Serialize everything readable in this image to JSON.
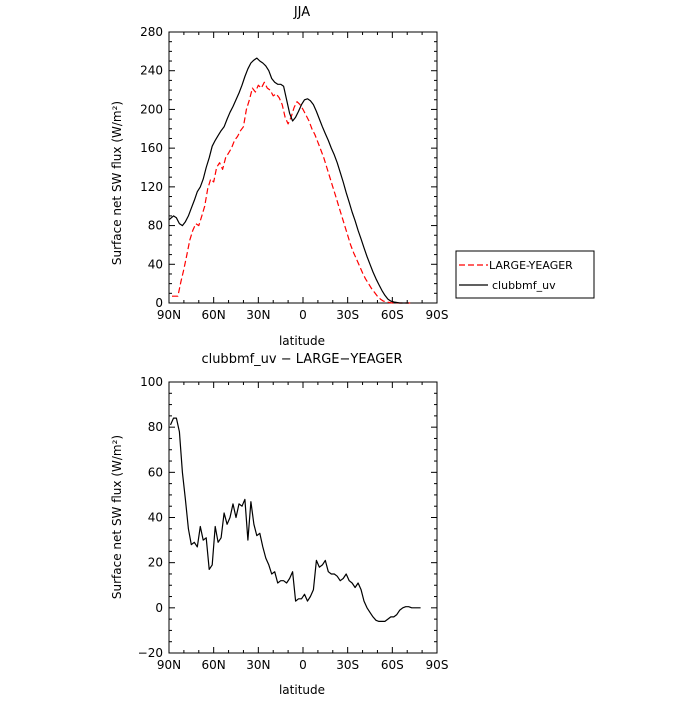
{
  "chart_data": [
    {
      "type": "line",
      "title": "JJA",
      "xlabel": "latitude",
      "ylabel": "Surface net SW flux (W/m²)",
      "xlim": [
        90,
        -90
      ],
      "ylim": [
        0,
        280
      ],
      "xticks": [
        90,
        60,
        30,
        0,
        -30,
        -60,
        -90
      ],
      "xtick_labels": [
        "90N",
        "60N",
        "30N",
        "0",
        "30S",
        "60S",
        "90S"
      ],
      "yticks": [
        0,
        40,
        80,
        120,
        160,
        200,
        240,
        280
      ],
      "ytick_labels": [
        "0",
        "40",
        "80",
        "120",
        "160",
        "200",
        "240",
        "280"
      ],
      "legend_position": "outside-right",
      "series": [
        {
          "name": "LARGE-YEAGER",
          "color": "#ff0000",
          "dash": "dashed",
          "x": [
            88,
            84,
            82,
            80,
            78,
            76,
            74,
            72,
            70,
            68,
            66,
            64,
            62,
            60,
            58,
            56,
            54,
            52,
            50,
            48,
            46,
            44,
            42,
            40,
            38,
            36,
            34,
            32,
            30,
            28,
            26,
            24,
            22,
            20,
            18,
            16,
            14,
            12,
            10,
            8,
            6,
            4,
            2,
            0,
            -2,
            -4,
            -6,
            -8,
            -10,
            -12,
            -14,
            -16,
            -18,
            -20,
            -22,
            -24,
            -26,
            -28,
            -30,
            -32,
            -34,
            -36,
            -38,
            -40,
            -42,
            -44,
            -46,
            -48,
            -50,
            -52,
            -54,
            -56,
            -58,
            -60,
            -62,
            -64,
            -66,
            -68,
            -70,
            -72
          ],
          "y": [
            7,
            7,
            22,
            35,
            50,
            65,
            75,
            82,
            80,
            90,
            100,
            118,
            128,
            125,
            140,
            145,
            138,
            150,
            155,
            160,
            168,
            172,
            178,
            182,
            200,
            210,
            222,
            218,
            225,
            222,
            228,
            222,
            220,
            214,
            216,
            212,
            205,
            192,
            185,
            192,
            202,
            208,
            205,
            200,
            194,
            188,
            180,
            174,
            166,
            158,
            150,
            140,
            130,
            120,
            110,
            100,
            90,
            80,
            70,
            60,
            52,
            45,
            38,
            31,
            25,
            20,
            15,
            11,
            7,
            4,
            2,
            1,
            0.5,
            0,
            0,
            0,
            0,
            0,
            0,
            0
          ]
        },
        {
          "name": "clubbmf_uv",
          "color": "#000000",
          "dash": "solid",
          "x": [
            90,
            87,
            85,
            83,
            81,
            79,
            77,
            75,
            73,
            71,
            69,
            67,
            65,
            63,
            61,
            59,
            57,
            55,
            53,
            51,
            49,
            47,
            45,
            43,
            41,
            39,
            37,
            35,
            33,
            31,
            29,
            27,
            25,
            23,
            21,
            19,
            17,
            15,
            13,
            11,
            9,
            7,
            5,
            3,
            1,
            -1,
            -3,
            -5,
            -7,
            -9,
            -11,
            -13,
            -15,
            -17,
            -19,
            -21,
            -23,
            -25,
            -27,
            -29,
            -31,
            -33,
            -35,
            -37,
            -39,
            -41,
            -43,
            -45,
            -47,
            -49,
            -51,
            -53,
            -55,
            -57,
            -59,
            -61,
            -63,
            -65,
            -67,
            -69,
            -71
          ],
          "y": [
            86,
            90,
            88,
            82,
            80,
            84,
            90,
            98,
            106,
            115,
            120,
            128,
            140,
            150,
            162,
            168,
            173,
            178,
            182,
            190,
            197,
            203,
            210,
            217,
            225,
            234,
            242,
            248,
            251,
            253,
            250,
            248,
            245,
            240,
            232,
            228,
            226,
            226,
            224,
            210,
            196,
            188,
            192,
            198,
            205,
            210,
            211,
            209,
            205,
            198,
            190,
            182,
            175,
            168,
            160,
            153,
            145,
            135,
            125,
            114,
            104,
            94,
            85,
            75,
            66,
            57,
            48,
            40,
            32,
            25,
            19,
            13,
            8,
            4,
            2,
            1,
            0.5,
            0,
            0,
            0,
            0
          ]
        }
      ]
    },
    {
      "type": "line",
      "title": "clubbmf_uv − LARGE−YEAGER",
      "xlabel": "latitude",
      "ylabel": "Surface net SW flux (W/m²)",
      "xlim": [
        90,
        -90
      ],
      "ylim": [
        -20,
        100
      ],
      "xticks": [
        90,
        60,
        30,
        0,
        -30,
        -60,
        -90
      ],
      "xtick_labels": [
        "90N",
        "60N",
        "30N",
        "0",
        "30S",
        "60S",
        "90S"
      ],
      "yticks": [
        -20,
        0,
        20,
        40,
        60,
        80,
        100
      ],
      "ytick_labels": [
        "−20",
        "0",
        "20",
        "40",
        "60",
        "80",
        "100"
      ],
      "series": [
        {
          "color": "#000000",
          "dash": "solid",
          "x": [
            89,
            87,
            85,
            83,
            81,
            79,
            77,
            75,
            73,
            71,
            69,
            67,
            65,
            63,
            61,
            59,
            57,
            55,
            53,
            51,
            49,
            47,
            45,
            43,
            41,
            39,
            37,
            35,
            33,
            31,
            29,
            27,
            25,
            23,
            21,
            19,
            17,
            15,
            13,
            11,
            9,
            7,
            5,
            3,
            1,
            -1,
            -3,
            -5,
            -7,
            -9,
            -11,
            -13,
            -15,
            -17,
            -19,
            -21,
            -23,
            -25,
            -27,
            -29,
            -31,
            -33,
            -35,
            -37,
            -39,
            -41,
            -43,
            -45,
            -47,
            -49,
            -51,
            -53,
            -55,
            -57,
            -59,
            -61,
            -63,
            -65,
            -67,
            -69,
            -71,
            -73,
            -75,
            -77,
            -79
          ],
          "y": [
            81,
            84,
            84,
            78,
            60,
            48,
            35,
            28,
            29,
            27,
            36,
            30,
            31,
            17,
            19,
            36,
            29,
            31,
            42,
            37,
            40,
            46,
            40,
            46,
            45,
            48,
            30,
            47,
            37,
            32,
            33,
            27,
            22,
            19,
            15,
            16,
            11,
            12,
            12,
            11,
            13,
            16,
            3,
            4,
            4,
            6,
            3,
            5,
            8,
            21,
            18,
            19,
            21,
            16,
            15,
            15,
            14,
            12,
            13,
            15,
            12,
            11,
            9,
            11,
            8,
            3,
            0,
            -2,
            -4,
            -5.5,
            -6,
            -6,
            -6,
            -5,
            -4,
            -4,
            -3,
            -1,
            0,
            0.5,
            0.5,
            0,
            0,
            0,
            0
          ]
        }
      ]
    }
  ]
}
